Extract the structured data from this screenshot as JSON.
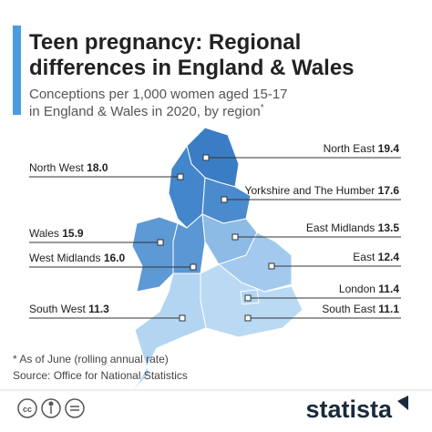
{
  "header": {
    "title_lines": [
      "Teen pregnancy: Regional",
      "differences in England & Wales"
    ],
    "subtitle_lines": [
      "Conceptions per 1,000 women aged 15-17",
      "in England & Wales in 2020, by region"
    ],
    "subtitle_note": "*"
  },
  "regions": [
    {
      "name": "North East",
      "value": "19.4",
      "color": "#3b7dc4"
    },
    {
      "name": "North West",
      "value": "18.0",
      "color": "#4386cb"
    },
    {
      "name": "Yorkshire and The Humber",
      "value": "17.6",
      "color": "#4a8bcd"
    },
    {
      "name": "Wales",
      "value": "15.9",
      "color": "#5c99d5"
    },
    {
      "name": "West Midlands",
      "value": "16.0",
      "color": "#5a97d4"
    },
    {
      "name": "East Midlands",
      "value": "13.5",
      "color": "#8cbbe6"
    },
    {
      "name": "East",
      "value": "12.4",
      "color": "#a3caee"
    },
    {
      "name": "London",
      "value": "11.4",
      "color": "#b2d3f1"
    },
    {
      "name": "South West",
      "value": "11.3",
      "color": "#b4d5f2"
    },
    {
      "name": "South East",
      "value": "11.1",
      "color": "#badaf4"
    }
  ],
  "footnote": "* As of June (rolling annual rate)",
  "source": "Source: Office for National Statistics",
  "brand": "statista"
}
